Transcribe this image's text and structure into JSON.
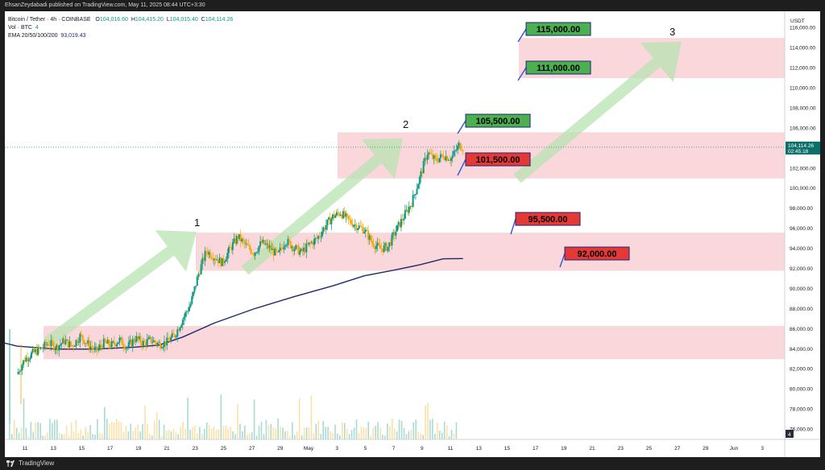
{
  "header": {
    "published": "EhsanZeydabadi published on TradingView.com, May 11, 2025 08:44 UTC+3:30"
  },
  "legend": {
    "symbol": "Bitcoin / Tether · 4h · COINBASE",
    "o_label": "O",
    "o_value": "104,016.60",
    "h_label": "H",
    "h_value": "104,415.20",
    "l_label": "L",
    "l_value": "104,015.40",
    "c_label": "C",
    "c_value": "104,114.26",
    "vol": "Vol · BTC",
    "vol_value": "4",
    "ema_label": "EMA 20/50/100/200",
    "ema_value": "93,019.43"
  },
  "footer": {
    "brand": "TradingView"
  },
  "colors": {
    "up": "#089981",
    "down": "#f7a600",
    "ema": "#1c2a6b",
    "zone": "#f7c9ce",
    "arrow": "#b7e3b0",
    "green_box": "#4caf50",
    "red_box": "#e53935",
    "price_tag": "#0b6f6a"
  },
  "chart_data": {
    "type": "candlestick",
    "currency_label": "USDT",
    "ylim": [
      75000,
      117500
    ],
    "y_ticks": [
      "116,000.00",
      "114,000.00",
      "112,000.00",
      "110,000.00",
      "108,000.00",
      "106,000.00",
      "104,000.00",
      "102,000.00",
      "100,000.00",
      "98,000.00",
      "96,000.00",
      "94,000.00",
      "92,000.00",
      "90,000.00",
      "88,000.00",
      "86,000.00",
      "84,000.00",
      "82,000.00",
      "80,000.00",
      "78,000.00",
      "76,000.00"
    ],
    "x_ticks": [
      "11",
      "13",
      "15",
      "17",
      "19",
      "21",
      "23",
      "25",
      "27",
      "29",
      "May",
      "3",
      "5",
      "7",
      "9",
      "11",
      "13",
      "15",
      "17",
      "19",
      "21",
      "23",
      "25",
      "27",
      "29",
      "Jun",
      "3"
    ],
    "price_tag": {
      "value": "104,114.26",
      "countdown": "02:45:18"
    },
    "axis_badge": "4",
    "zones": [
      {
        "from": 101000,
        "to": 105600
      },
      {
        "from": 91800,
        "to": 95600
      },
      {
        "from": 83000,
        "to": 86300
      },
      {
        "from": 111000,
        "to": 115000
      }
    ],
    "levels": [
      {
        "label": "115,000.00",
        "kind": "resistance"
      },
      {
        "label": "111,000.00",
        "kind": "resistance"
      },
      {
        "label": "105,500.00",
        "kind": "resistance"
      },
      {
        "label": "101,500.00",
        "kind": "support"
      },
      {
        "label": "95,500.00",
        "kind": "support"
      },
      {
        "label": "92,000.00",
        "kind": "support"
      }
    ],
    "wave_labels": [
      "1",
      "2",
      "3"
    ],
    "price_path": [
      [
        0,
        81500
      ],
      [
        2,
        83000
      ],
      [
        4,
        83600
      ],
      [
        6,
        84000
      ],
      [
        8,
        84600
      ],
      [
        10,
        84200
      ],
      [
        12,
        84800
      ],
      [
        14,
        84300
      ],
      [
        16,
        85300
      ],
      [
        18,
        84500
      ],
      [
        20,
        83800
      ],
      [
        22,
        84600
      ],
      [
        24,
        84400
      ],
      [
        26,
        84900
      ],
      [
        28,
        84200
      ],
      [
        30,
        85100
      ],
      [
        32,
        84600
      ],
      [
        34,
        84900
      ],
      [
        36,
        84500
      ],
      [
        38,
        84700
      ],
      [
        40,
        85400
      ],
      [
        42,
        87000
      ],
      [
        44,
        88500
      ],
      [
        46,
        91500
      ],
      [
        48,
        93800
      ],
      [
        50,
        93200
      ],
      [
        52,
        92600
      ],
      [
        54,
        94000
      ],
      [
        56,
        95200
      ],
      [
        58,
        94300
      ],
      [
        60,
        93600
      ],
      [
        62,
        94600
      ],
      [
        64,
        94100
      ],
      [
        66,
        93300
      ],
      [
        68,
        94800
      ],
      [
        70,
        94200
      ],
      [
        72,
        93600
      ],
      [
        74,
        94400
      ],
      [
        76,
        95000
      ],
      [
        78,
        96200
      ],
      [
        80,
        97200
      ],
      [
        82,
        97600
      ],
      [
        84,
        96800
      ],
      [
        86,
        96300
      ],
      [
        88,
        95900
      ],
      [
        90,
        94600
      ],
      [
        92,
        94000
      ],
      [
        94,
        94200
      ],
      [
        96,
        95800
      ],
      [
        98,
        97200
      ],
      [
        100,
        98600
      ],
      [
        102,
        101000
      ],
      [
        104,
        103600
      ],
      [
        106,
        102800
      ],
      [
        108,
        103300
      ],
      [
        110,
        103000
      ],
      [
        112,
        104300
      ],
      [
        113,
        104114
      ]
    ],
    "ema_path": [
      [
        0,
        84300
      ],
      [
        10,
        84000
      ],
      [
        20,
        84000
      ],
      [
        30,
        84200
      ],
      [
        36,
        84400
      ],
      [
        42,
        85200
      ],
      [
        50,
        86600
      ],
      [
        60,
        88000
      ],
      [
        70,
        89200
      ],
      [
        80,
        90300
      ],
      [
        88,
        91300
      ],
      [
        96,
        91900
      ],
      [
        102,
        92400
      ],
      [
        108,
        93000
      ],
      [
        113,
        93019
      ]
    ],
    "volume_scale": [
      0,
      1
    ]
  }
}
